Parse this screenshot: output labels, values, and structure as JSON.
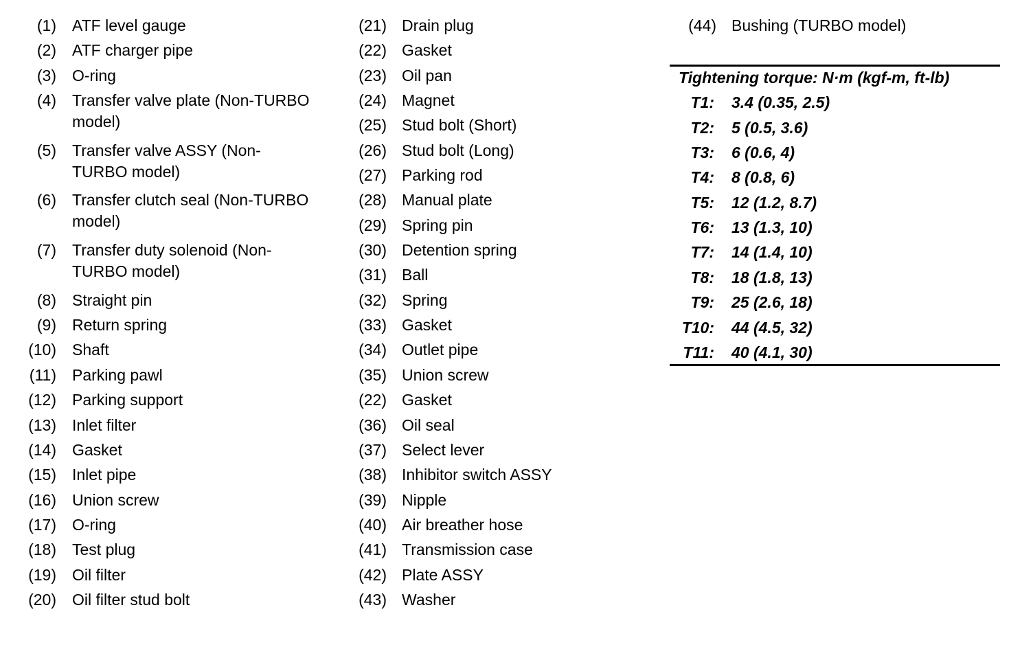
{
  "parts_columns": [
    [
      {
        "num": "(1)",
        "name": "ATF level gauge"
      },
      {
        "num": "(2)",
        "name": "ATF charger pipe"
      },
      {
        "num": "(3)",
        "name": "O-ring"
      },
      {
        "num": "(4)",
        "name": "Transfer valve plate (Non-TURBO model)",
        "lines": [
          "Transfer valve plate (Non-TURBO",
          "model)"
        ]
      },
      {
        "num": "(5)",
        "name": "Transfer valve ASSY (Non-TURBO model)",
        "lines": [
          "Transfer valve ASSY (Non-",
          "TURBO model)"
        ]
      },
      {
        "num": "(6)",
        "name": "Transfer clutch seal (Non-TURBO model)",
        "lines": [
          "Transfer clutch seal (Non-TURBO",
          "model)"
        ]
      },
      {
        "num": "(7)",
        "name": "Transfer duty solenoid (Non-TURBO model)",
        "lines": [
          "Transfer duty solenoid (Non-",
          "TURBO model)"
        ]
      },
      {
        "num": "(8)",
        "name": "Straight pin"
      },
      {
        "num": "(9)",
        "name": "Return spring"
      },
      {
        "num": "(10)",
        "name": "Shaft"
      },
      {
        "num": "(11)",
        "name": "Parking pawl"
      },
      {
        "num": "(12)",
        "name": "Parking support"
      },
      {
        "num": "(13)",
        "name": "Inlet filter"
      },
      {
        "num": "(14)",
        "name": "Gasket"
      },
      {
        "num": "(15)",
        "name": "Inlet pipe"
      },
      {
        "num": "(16)",
        "name": "Union screw"
      },
      {
        "num": "(17)",
        "name": "O-ring"
      },
      {
        "num": "(18)",
        "name": "Test plug"
      },
      {
        "num": "(19)",
        "name": "Oil filter"
      },
      {
        "num": "(20)",
        "name": "Oil filter stud bolt"
      }
    ],
    [
      {
        "num": "(21)",
        "name": "Drain plug"
      },
      {
        "num": "(22)",
        "name": "Gasket"
      },
      {
        "num": "(23)",
        "name": "Oil pan"
      },
      {
        "num": "(24)",
        "name": "Magnet"
      },
      {
        "num": "(25)",
        "name": "Stud bolt (Short)"
      },
      {
        "num": "(26)",
        "name": "Stud bolt (Long)"
      },
      {
        "num": "(27)",
        "name": "Parking rod"
      },
      {
        "num": "(28)",
        "name": "Manual plate"
      },
      {
        "num": "(29)",
        "name": "Spring pin"
      },
      {
        "num": "(30)",
        "name": "Detention spring"
      },
      {
        "num": "(31)",
        "name": "Ball"
      },
      {
        "num": "(32)",
        "name": "Spring"
      },
      {
        "num": "(33)",
        "name": "Gasket"
      },
      {
        "num": "(34)",
        "name": "Outlet pipe"
      },
      {
        "num": "(35)",
        "name": "Union screw"
      },
      {
        "num": "(22)",
        "name": "Gasket"
      },
      {
        "num": "(36)",
        "name": "Oil seal"
      },
      {
        "num": "(37)",
        "name": "Select lever"
      },
      {
        "num": "(38)",
        "name": "Inhibitor switch ASSY"
      },
      {
        "num": "(39)",
        "name": "Nipple"
      },
      {
        "num": "(40)",
        "name": "Air breather hose"
      },
      {
        "num": "(41)",
        "name": "Transmission case"
      },
      {
        "num": "(42)",
        "name": "Plate ASSY"
      },
      {
        "num": "(43)",
        "name": "Washer"
      }
    ],
    [
      {
        "num": "(44)",
        "name": "Bushing (TURBO model)"
      }
    ]
  ],
  "torque": {
    "title": "Tightening torque: N·m (kgf-m, ft-lb)",
    "rows": [
      {
        "label": "T1:",
        "value": "3.4 (0.35, 2.5)"
      },
      {
        "label": "T2:",
        "value": "5 (0.5, 3.6)"
      },
      {
        "label": "T3:",
        "value": "6 (0.6, 4)"
      },
      {
        "label": "T4:",
        "value": "8 (0.8, 6)"
      },
      {
        "label": "T5:",
        "value": "12 (1.2, 8.7)"
      },
      {
        "label": "T6:",
        "value": "13 (1.3, 10)"
      },
      {
        "label": "T7:",
        "value": "14 (1.4, 10)"
      },
      {
        "label": "T8:",
        "value": "18 (1.8, 13)"
      },
      {
        "label": "T9:",
        "value": "25 (2.6, 18)"
      },
      {
        "label": "T10:",
        "value": "44 (4.5, 32)"
      },
      {
        "label": "T11:",
        "value": "40 (4.1, 30)"
      }
    ]
  }
}
